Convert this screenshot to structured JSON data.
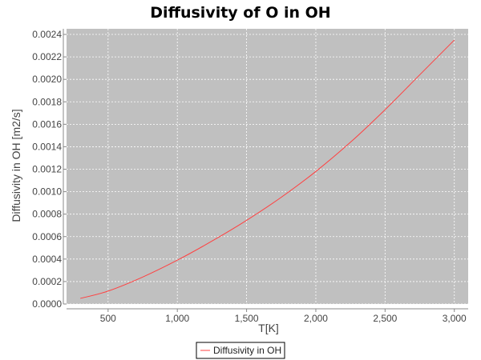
{
  "chart_data": {
    "type": "line",
    "title": "Diffusivity of O in OH",
    "xlabel": "T[K]",
    "ylabel": "Diffusivity in OH [m2/s]",
    "xlim": [
      200,
      3100
    ],
    "ylim": [
      0,
      0.00245
    ],
    "xticks": [
      500,
      1000,
      1500,
      2000,
      2500,
      3000
    ],
    "xtick_labels": [
      "500",
      "1,000",
      "1,500",
      "2,000",
      "2,500",
      "3,000"
    ],
    "yticks": [
      0,
      0.0002,
      0.0004,
      0.0006,
      0.0008,
      0.001,
      0.0012,
      0.0014,
      0.0016,
      0.0018,
      0.002,
      0.0022,
      0.0024
    ],
    "ytick_labels": [
      "0.0000",
      "0.0002",
      "0.0004",
      "0.0006",
      "0.0008",
      "0.0010",
      "0.0012",
      "0.0014",
      "0.0016",
      "0.0018",
      "0.0020",
      "0.0022",
      "0.0024"
    ],
    "grid": true,
    "legend_position": "bottom",
    "series": [
      {
        "name": "Diffusivity in OH",
        "color": "#ff4040",
        "x": [
          300,
          500,
          750,
          1000,
          1250,
          1500,
          1750,
          2000,
          2250,
          2500,
          2750,
          3000
        ],
        "y": [
          5e-05,
          0.000115,
          0.00024,
          0.00039,
          0.00056,
          0.000745,
          0.00095,
          0.00118,
          0.00144,
          0.00173,
          0.00204,
          0.00235
        ]
      }
    ]
  },
  "colors": {
    "plot_background": "#c0c0c0",
    "grid": "#ffffff",
    "axis": "#888888"
  }
}
